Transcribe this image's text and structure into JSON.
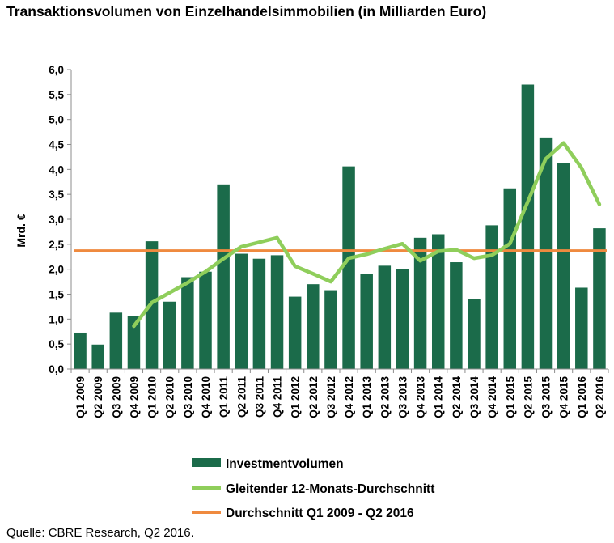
{
  "title": "Transaktionsvolumen von Einzelhandelsimmobilien (in Milliarden Euro)",
  "source": "Quelle: CBRE Research, Q2 2016.",
  "colors": {
    "bar": "#1b6b4a",
    "moving_avg": "#8fce5b",
    "average_line": "#ef8a3f"
  },
  "chart_data": {
    "type": "bar",
    "ylabel": "Mrd. €",
    "xlabel": "",
    "ylim": [
      0,
      6
    ],
    "yticks": [
      "0,0",
      "0,5",
      "1,0",
      "1,5",
      "2,0",
      "2,5",
      "3,0",
      "3,5",
      "4,0",
      "4,5",
      "5,0",
      "5,5",
      "6,0"
    ],
    "grid": false,
    "legend_position": "bottom",
    "categories": [
      "Q1 2009",
      "Q2 2009",
      "Q3 2009",
      "Q4 2009",
      "Q1 2010",
      "Q2 2010",
      "Q3 2010",
      "Q4 2010",
      "Q1 2011",
      "Q2 2011",
      "Q3 2011",
      "Q4 2011",
      "Q1 2012",
      "Q2 2012",
      "Q3 2012",
      "Q4 2012",
      "Q1 2013",
      "Q2 2013",
      "Q3 2013",
      "Q4 2013",
      "Q1 2014",
      "Q2 2014",
      "Q3 2014",
      "Q4 2014",
      "Q1 2015",
      "Q2 2015",
      "Q3 2015",
      "Q4 2015",
      "Q1 2016",
      "Q2 2016"
    ],
    "series": [
      {
        "name": "Investmentvolumen",
        "type": "bar",
        "values": [
          0.73,
          0.49,
          1.13,
          1.07,
          2.56,
          1.35,
          1.84,
          1.95,
          3.7,
          2.31,
          2.21,
          2.28,
          1.45,
          1.7,
          1.58,
          4.06,
          1.91,
          2.07,
          2.0,
          2.63,
          2.7,
          2.14,
          1.4,
          2.88,
          3.62,
          5.7,
          4.64,
          4.13,
          1.63,
          2.82
        ]
      },
      {
        "name": "Gleitender 12-Monats-Durchschnitt",
        "type": "line",
        "values": [
          null,
          null,
          null,
          0.86,
          1.33,
          1.53,
          1.73,
          1.95,
          2.21,
          2.45,
          2.54,
          2.63,
          2.06,
          1.91,
          1.75,
          2.22,
          2.3,
          2.41,
          2.51,
          2.17,
          2.36,
          2.39,
          2.22,
          2.28,
          2.51,
          3.35,
          4.21,
          4.53,
          4.03,
          3.3
        ]
      },
      {
        "name": "Durchschnitt Q1 2009 - Q2 2016",
        "type": "line",
        "values": [
          2.37,
          2.37,
          2.37,
          2.37,
          2.37,
          2.37,
          2.37,
          2.37,
          2.37,
          2.37,
          2.37,
          2.37,
          2.37,
          2.37,
          2.37,
          2.37,
          2.37,
          2.37,
          2.37,
          2.37,
          2.37,
          2.37,
          2.37,
          2.37,
          2.37,
          2.37,
          2.37,
          2.37,
          2.37,
          2.37
        ]
      }
    ]
  }
}
